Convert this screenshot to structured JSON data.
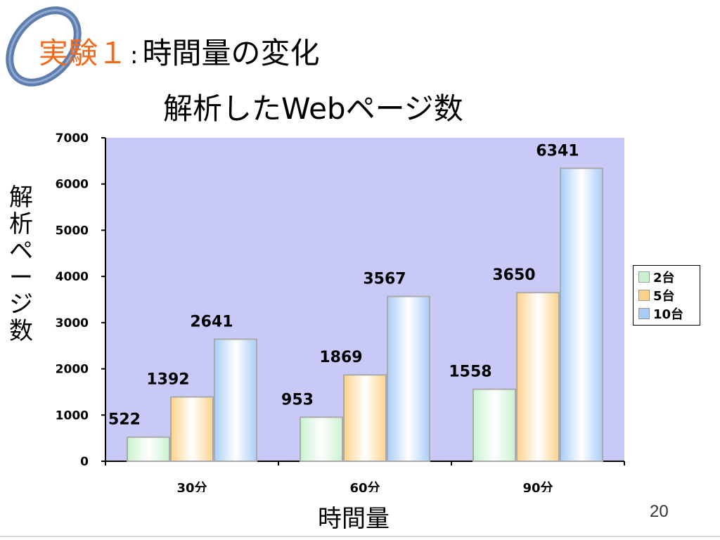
{
  "slide": {
    "title_prefix": "実験１",
    "title_colon": ":",
    "title_rest": "時間量の変化",
    "subtitle": "解析したWebページ数",
    "page_number": "20"
  },
  "colors": {
    "title_accent": "#f26b1d",
    "plot_background": "#c9c9f8",
    "logo_ring": "#4a6fa5"
  },
  "chart_data": {
    "type": "bar",
    "title": "",
    "xlabel": "時間量",
    "ylabel": "解析ページ数",
    "categories": [
      "30分",
      "60分",
      "90分"
    ],
    "series": [
      {
        "name": "2台",
        "values": [
          522,
          953,
          1558
        ],
        "color": "#c9f2cf"
      },
      {
        "name": "5台",
        "values": [
          1392,
          1869,
          3650
        ],
        "color": "#fcd28a"
      },
      {
        "name": "10台",
        "values": [
          2641,
          3567,
          6341
        ],
        "color": "#a9cdf7"
      }
    ],
    "ylim": [
      0,
      7000
    ],
    "yticks": [
      0,
      1000,
      2000,
      3000,
      4000,
      5000,
      6000,
      7000
    ],
    "grid": false,
    "legend_position": "right",
    "data_labels": true
  }
}
